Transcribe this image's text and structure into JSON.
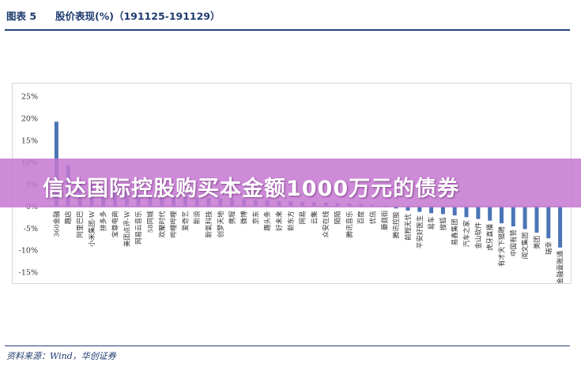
{
  "header": {
    "figure_label": "图表 5",
    "title": "股价表现(%)（191125-191129）"
  },
  "source": "资料来源：Wind，华创证券",
  "banner": {
    "text": "信达国际控股购买本金额1000万元的债券",
    "color": "#c678d2"
  },
  "chart_data": {
    "type": "bar",
    "bar_color": "#4a74b5",
    "ylim": [
      -15,
      25
    ],
    "yticks": [
      "25%",
      "20%",
      "15%",
      "10%",
      "5%",
      "0%",
      "-5%",
      "-10%",
      "-15%"
    ],
    "ytick_values": [
      25,
      20,
      15,
      10,
      5,
      0,
      -5,
      -10,
      -15
    ],
    "grid": false,
    "categories": [
      "360金融",
      "趣店",
      "阿里巴巴",
      "小米集团-W",
      "拼多多",
      "宝尊电商",
      "美团点评-W",
      "网易云音乐",
      "58同城",
      "欢聚时代",
      "哔哩哔哩",
      "爱奇艺",
      "新浪",
      "新氧科技",
      "创梦天地",
      "携程",
      "微博",
      "京东",
      "趣头条",
      "好未来",
      "新东方",
      "网易",
      "云集",
      "众安在线",
      "陌陌",
      "腾讯音乐",
      "百度",
      "优信",
      "蘑菇街",
      "腾讯控股",
      "前程无忧",
      "平安好医生",
      "易车",
      "搜狐",
      "易鑫集团",
      "汽车之家",
      "金山软件",
      "虎牙直播",
      "有才天下猎聘",
      "中国有赞",
      "阅文集团",
      "美团",
      "瑞幸",
      "金融壹账通"
    ],
    "values": [
      19.2,
      9.3,
      5.6,
      5.1,
      4.0,
      3.7,
      3.3,
      3.0,
      2.8,
      2.6,
      2.4,
      2.2,
      2.0,
      1.9,
      1.8,
      1.6,
      1.5,
      1.4,
      1.3,
      1.2,
      1.1,
      1.0,
      0.9,
      0.8,
      0.7,
      0.6,
      0.5,
      0.3,
      -0.2,
      -0.5,
      -1.0,
      -1.3,
      -1.6,
      -1.8,
      -2.1,
      -2.5,
      -2.9,
      -3.3,
      -3.9,
      -4.6,
      -5.2,
      -6.0,
      -7.3,
      -9.4
    ]
  }
}
